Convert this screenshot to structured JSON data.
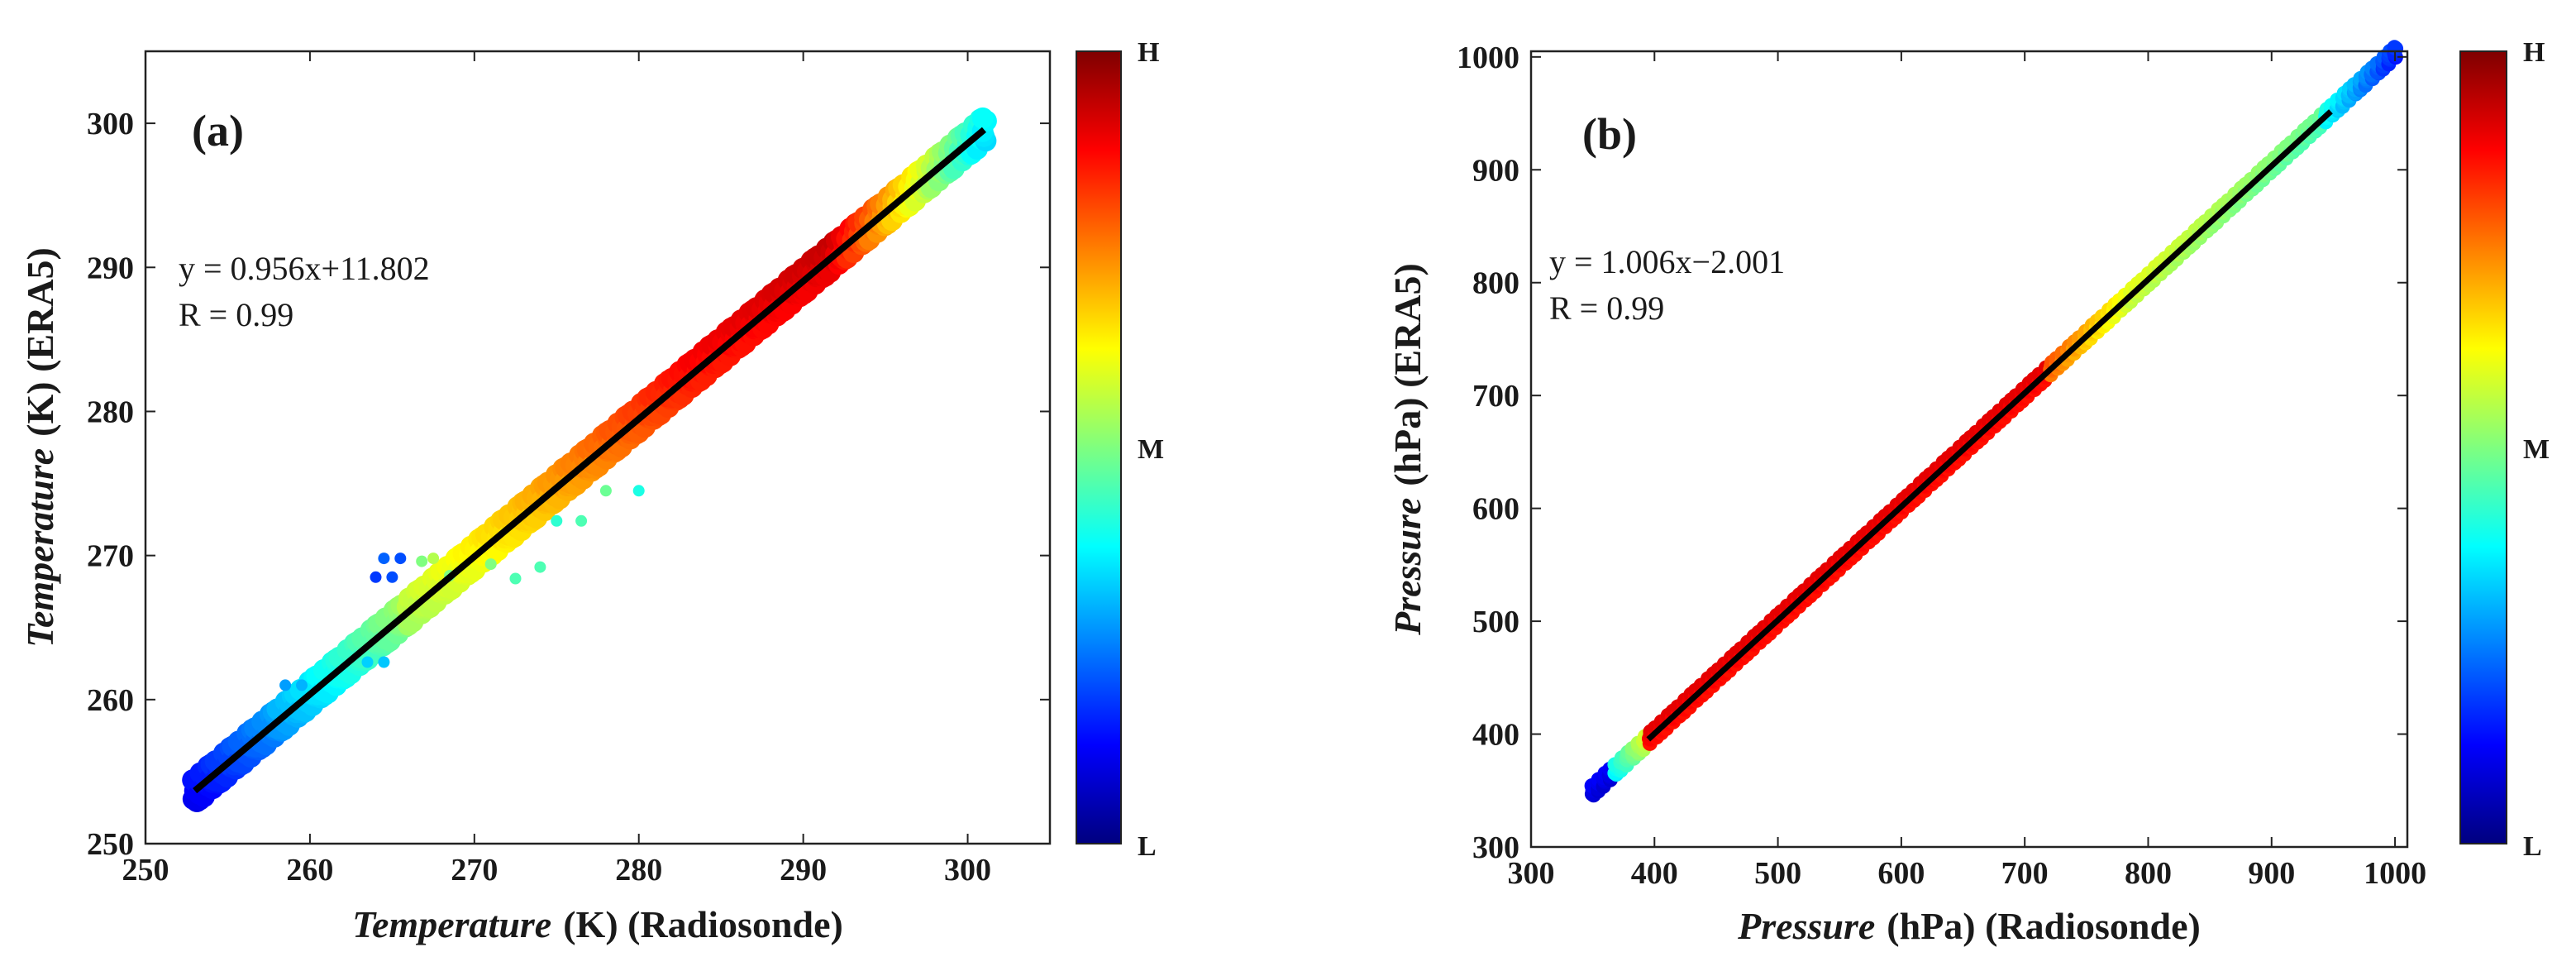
{
  "chart_data": [
    {
      "type": "scatter",
      "panel": "(a)",
      "xlabel": {
        "italic": "Temperature",
        "rest": "(K) (Radiosonde)"
      },
      "ylabel": {
        "italic": "Temperature",
        "rest": "(K) (ERA5)"
      },
      "xlim": [
        250,
        305
      ],
      "ylim": [
        250,
        305
      ],
      "xticks": [
        250,
        260,
        270,
        280,
        290,
        300
      ],
      "yticks": [
        250,
        260,
        270,
        280,
        290,
        300
      ],
      "fit": {
        "slope": 0.956,
        "intercept": 11.802,
        "x_range": [
          253,
          301
        ]
      },
      "equation": "y = 0.956x+11.802",
      "r_text": "R = 0.99",
      "colorbar": {
        "labels": [
          "H",
          "M",
          "L"
        ],
        "colormap": "jet"
      },
      "band": {
        "x_range": [
          253,
          301
        ],
        "half_width": 0.9
      },
      "outliers": [
        {
          "x": 264.5,
          "y": 269.8,
          "level": 0.22
        },
        {
          "x": 265.5,
          "y": 269.8,
          "level": 0.2
        },
        {
          "x": 264.0,
          "y": 268.5,
          "level": 0.18
        },
        {
          "x": 265.0,
          "y": 268.5,
          "level": 0.2
        },
        {
          "x": 266.8,
          "y": 269.6,
          "level": 0.5
        },
        {
          "x": 267.5,
          "y": 269.8,
          "level": 0.55
        },
        {
          "x": 268.5,
          "y": 268.6,
          "level": 0.5
        },
        {
          "x": 271.0,
          "y": 269.4,
          "level": 0.5
        },
        {
          "x": 272.5,
          "y": 268.4,
          "level": 0.45
        },
        {
          "x": 274.0,
          "y": 269.2,
          "level": 0.45
        },
        {
          "x": 276.5,
          "y": 272.4,
          "level": 0.45
        },
        {
          "x": 275.0,
          "y": 272.4,
          "level": 0.42
        },
        {
          "x": 278.0,
          "y": 274.5,
          "level": 0.48
        },
        {
          "x": 280.0,
          "y": 274.5,
          "level": 0.4
        },
        {
          "x": 258.5,
          "y": 261.0,
          "level": 0.28
        },
        {
          "x": 259.5,
          "y": 261.0,
          "level": 0.3
        },
        {
          "x": 263.5,
          "y": 262.6,
          "level": 0.33
        },
        {
          "x": 264.5,
          "y": 262.6,
          "level": 0.32
        }
      ]
    },
    {
      "type": "scatter",
      "panel": "(b)",
      "xlabel": {
        "italic": "Pressure",
        "rest": "(hPa) (Radiosonde)"
      },
      "ylabel": {
        "italic": "Pressure",
        "rest": "(hPa) (ERA5)"
      },
      "xlim": [
        300,
        1010
      ],
      "ylim": [
        300,
        1005
      ],
      "xticks": [
        300,
        400,
        500,
        600,
        700,
        800,
        900,
        1000
      ],
      "yticks": [
        300,
        400,
        500,
        600,
        700,
        800,
        900,
        1000
      ],
      "fit": {
        "slope": 1.006,
        "intercept": -2.001,
        "x_range": [
          395,
          948
        ]
      },
      "equation": "y = 1.006x−2.001",
      "r_text": "R = 0.99",
      "colorbar": {
        "labels": [
          "H",
          "M",
          "L"
        ],
        "colormap": "jet"
      },
      "band": {
        "x_range": [
          350,
          1000
        ],
        "half_width": 5
      }
    }
  ]
}
